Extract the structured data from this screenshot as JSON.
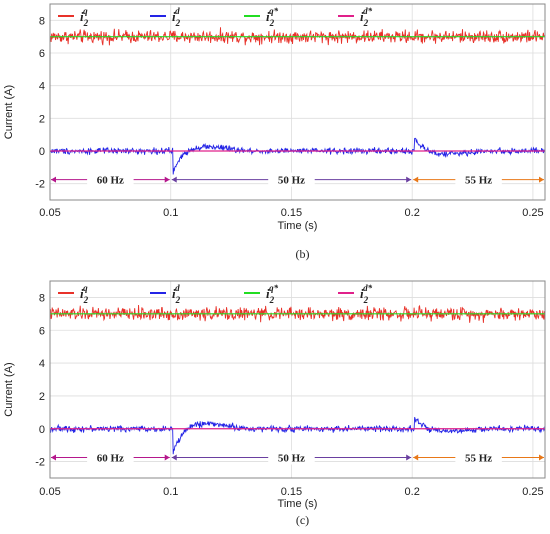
{
  "chart_data": [
    {
      "type": "line",
      "caption": "(b)",
      "xlabel": "Time (s)",
      "ylabel": "Current (A)",
      "xlim": [
        0.05,
        0.255
      ],
      "ylim": [
        -3,
        9
      ],
      "xticks": [
        "0.05",
        "0.1",
        "0.15",
        "0.2",
        "0.25"
      ],
      "yticks": [
        "-2",
        "0",
        "2",
        "4",
        "6",
        "8"
      ],
      "grid": true,
      "legend_position": "top-left",
      "series": [
        {
          "name": "i2q",
          "symbol": "i",
          "sub": "2",
          "sup": "q",
          "color": "#e8322a",
          "mean": 7.0,
          "noise": 0.28,
          "transients": []
        },
        {
          "name": "i2d",
          "symbol": "i",
          "sub": "2",
          "sup": "d",
          "color": "#2424e6",
          "mean": 0.0,
          "noise": 0.13,
          "transients": [
            {
              "t": 0.101,
              "peak": -1.3,
              "overshoot": 0.45
            },
            {
              "t": 0.201,
              "peak": 0.75,
              "overshoot": -0.3
            }
          ]
        },
        {
          "name": "i2q*",
          "symbol": "i",
          "sub": "2",
          "sup": "q*",
          "color": "#22dd22",
          "value": 7.0
        },
        {
          "name": "i2d*",
          "symbol": "i",
          "sub": "2",
          "sup": "d*",
          "color": "#e0208a",
          "value": 0.0
        }
      ],
      "annotations": [
        {
          "label": "60 Hz",
          "from": 0.05,
          "to": 0.1,
          "y": -1.75,
          "color": "#b5178c"
        },
        {
          "label": "50 Hz",
          "from": 0.1,
          "to": 0.2,
          "y": -1.75,
          "color": "#6a3fa0"
        },
        {
          "label": "55 Hz",
          "from": 0.2,
          "to": 0.255,
          "y": -1.75,
          "color": "#e87818"
        }
      ]
    },
    {
      "type": "line",
      "caption": "(c)",
      "xlabel": "Time (s)",
      "ylabel": "Current (A)",
      "xlim": [
        0.05,
        0.255
      ],
      "ylim": [
        -3,
        9
      ],
      "xticks": [
        "0.05",
        "0.1",
        "0.15",
        "0.2",
        "0.25"
      ],
      "yticks": [
        "-2",
        "0",
        "2",
        "4",
        "6",
        "8"
      ],
      "grid": true,
      "legend_position": "top-left",
      "series": [
        {
          "name": "i2q",
          "symbol": "i",
          "sub": "2",
          "sup": "q",
          "color": "#e8322a",
          "mean": 7.0,
          "noise": 0.28,
          "transients": []
        },
        {
          "name": "i2d",
          "symbol": "i",
          "sub": "2",
          "sup": "d",
          "color": "#2424e6",
          "mean": 0.0,
          "noise": 0.13,
          "transients": [
            {
              "t": 0.101,
              "peak": -1.5,
              "overshoot": 0.55
            },
            {
              "t": 0.201,
              "peak": 0.7,
              "overshoot": -0.3
            }
          ]
        },
        {
          "name": "i2q*",
          "symbol": "i",
          "sub": "2",
          "sup": "q*",
          "color": "#22dd22",
          "value": 7.0
        },
        {
          "name": "i2d*",
          "symbol": "i",
          "sub": "2",
          "sup": "d*",
          "color": "#e0208a",
          "value": 0.0
        }
      ],
      "annotations": [
        {
          "label": "60 Hz",
          "from": 0.05,
          "to": 0.1,
          "y": -1.75,
          "color": "#b5178c"
        },
        {
          "label": "50 Hz",
          "from": 0.1,
          "to": 0.2,
          "y": -1.75,
          "color": "#6a3fa0"
        },
        {
          "label": "55 Hz",
          "from": 0.2,
          "to": 0.255,
          "y": -1.75,
          "color": "#e87818"
        }
      ]
    }
  ]
}
